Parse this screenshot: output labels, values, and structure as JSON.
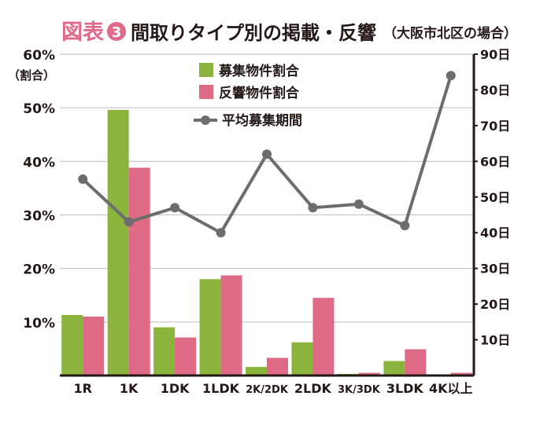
{
  "title": {
    "prefix": "図表",
    "number": "3",
    "main": "間取りタイプ別の掲載・反響",
    "sub": "（大阪市北区の場合）"
  },
  "colors": {
    "accent": "#e06a89",
    "bar_supply": "#8ab43c",
    "bar_response": "#de6a86",
    "line": "#6d6d6d",
    "text": "#231815",
    "grid": "#bdbdbd"
  },
  "chart_data": {
    "type": "bar",
    "categories": [
      "1R",
      "1K",
      "1DK",
      "1LDK",
      "2K/2DK",
      "2LDK",
      "3K/3DK",
      "3LDK",
      "4K以上"
    ],
    "series": [
      {
        "name": "募集物件割合",
        "axis": "left",
        "type": "bar",
        "values": [
          11.3,
          49.6,
          9.0,
          18.0,
          1.6,
          6.2,
          0.3,
          2.7,
          0.2
        ]
      },
      {
        "name": "反響物件割合",
        "axis": "left",
        "type": "bar",
        "values": [
          11.0,
          38.8,
          7.1,
          18.7,
          3.3,
          14.5,
          0.5,
          4.9,
          0.5
        ]
      },
      {
        "name": "平均募集期間",
        "axis": "right",
        "type": "line",
        "values": [
          55,
          43,
          47,
          40,
          62,
          47,
          48,
          42,
          84
        ]
      }
    ],
    "y_left": {
      "label": "（割合）",
      "range": [
        0,
        60
      ],
      "ticks": [
        10,
        20,
        30,
        40,
        50,
        60
      ],
      "tick_labels": [
        "10%",
        "20%",
        "30%",
        "40%",
        "50%",
        "60%"
      ]
    },
    "y_right": {
      "range": [
        0,
        90
      ],
      "ticks": [
        10,
        20,
        30,
        40,
        50,
        60,
        70,
        80,
        90
      ],
      "tick_labels": [
        "10日",
        "20日",
        "30日",
        "40日",
        "50日",
        "60日",
        "70日",
        "80日",
        "90日"
      ]
    },
    "grid": true,
    "legend_position": "top-center"
  }
}
